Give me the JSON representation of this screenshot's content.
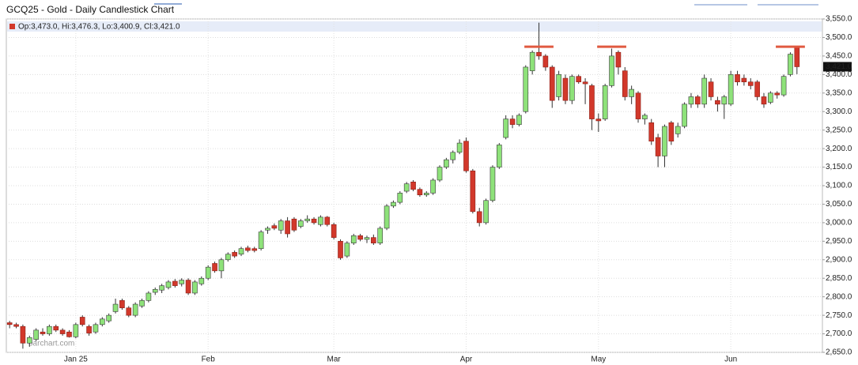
{
  "chart_data": {
    "type": "candlestick",
    "title": "GCQ25 - Gold - Daily Candlestick Chart",
    "legend_text": "Op:3,473.0, Hi:3,476.3, Lo:3,400.9, Cl:3,421.0",
    "watermark": "barchart.com",
    "up_color": "#8ee27a",
    "down_color": "#d2382b",
    "highlight_color": "#e05a40",
    "grid": true,
    "ylim": [
      2650,
      3550
    ],
    "yticks": [
      {
        "value": 2650,
        "label": "2,650.0"
      },
      {
        "value": 2700,
        "label": "2,700.0"
      },
      {
        "value": 2750,
        "label": "2,750.0"
      },
      {
        "value": 2800,
        "label": "2,800.0"
      },
      {
        "value": 2850,
        "label": "2,850.0"
      },
      {
        "value": 2900,
        "label": "2,900.0"
      },
      {
        "value": 2950,
        "label": "2,950.0"
      },
      {
        "value": 3000,
        "label": "3,000.0"
      },
      {
        "value": 3050,
        "label": "3,050.0"
      },
      {
        "value": 3100,
        "label": "3,100.0"
      },
      {
        "value": 3150,
        "label": "3,150.0"
      },
      {
        "value": 3200,
        "label": "3,200.0"
      },
      {
        "value": 3250,
        "label": "3,250.0"
      },
      {
        "value": 3300,
        "label": "3,300.0"
      },
      {
        "value": 3350,
        "label": "3,350.0"
      },
      {
        "value": 3400,
        "label": "3,400.0"
      },
      {
        "value": 3450,
        "label": "3,450.0"
      },
      {
        "value": 3500,
        "label": "3,500.0"
      },
      {
        "value": 3550,
        "label": "3,550.0"
      }
    ],
    "last_close_label": "3,421.0",
    "categories": [
      null,
      null,
      null,
      null,
      null,
      null,
      null,
      null,
      null,
      null,
      "Jan 25",
      null,
      null,
      null,
      null,
      null,
      null,
      null,
      null,
      null,
      null,
      null,
      null,
      null,
      null,
      null,
      null,
      null,
      null,
      null,
      "Feb",
      null,
      null,
      null,
      null,
      null,
      null,
      null,
      null,
      null,
      null,
      null,
      null,
      null,
      null,
      null,
      null,
      null,
      null,
      "Mar",
      null,
      null,
      null,
      null,
      null,
      null,
      null,
      null,
      null,
      null,
      null,
      null,
      null,
      null,
      null,
      null,
      null,
      null,
      null,
      "Apr",
      null,
      null,
      null,
      null,
      null,
      null,
      null,
      null,
      null,
      null,
      null,
      null,
      null,
      null,
      null,
      null,
      null,
      null,
      null,
      "May",
      null,
      null,
      null,
      null,
      null,
      null,
      null,
      null,
      null,
      null,
      null,
      null,
      null,
      null,
      null,
      null,
      null,
      null,
      null,
      "Jun",
      null,
      null,
      null,
      null,
      null,
      null,
      null,
      null,
      null,
      null
    ],
    "open": [
      2730,
      2725,
      2720,
      2675,
      2685,
      2705,
      2700,
      2720,
      2710,
      2705,
      2692,
      2745,
      2720,
      2705,
      2725,
      2735,
      2760,
      2790,
      2770,
      2750,
      2775,
      2790,
      2812,
      2818,
      2825,
      2842,
      2835,
      2845,
      2810,
      2835,
      2850,
      2890,
      2870,
      2900,
      2920,
      2915,
      2932,
      2930,
      2930,
      2980,
      2992,
      2980,
      3005,
      3010,
      2990,
      3005,
      3010,
      2995,
      3015,
      2995,
      2950,
      2910,
      2945,
      2965,
      2955,
      2960,
      2945,
      2985,
      3045,
      3055,
      3085,
      3110,
      3090,
      3075,
      3080,
      3115,
      3150,
      3170,
      3190,
      3220,
      3140,
      3030,
      3000,
      3060,
      3150,
      3230,
      3280,
      3265,
      3300,
      3410,
      3460,
      3450,
      3420,
      3340,
      3390,
      3330,
      3395,
      3380,
      3370,
      3280,
      3280,
      3370,
      3460,
      3410,
      3340,
      3350,
      3280,
      3270,
      3230,
      3180,
      3270,
      3240,
      3260,
      3320,
      3340,
      3320,
      3380,
      3330,
      3320,
      3320,
      3400,
      3390,
      3380,
      3380,
      3340,
      3325,
      3350,
      3345,
      3400,
      3473
    ],
    "high": [
      2735,
      2730,
      2725,
      2695,
      2715,
      2715,
      2725,
      2725,
      2715,
      2710,
      2730,
      2750,
      2725,
      2730,
      2745,
      2755,
      2795,
      2795,
      2775,
      2785,
      2795,
      2815,
      2825,
      2835,
      2845,
      2848,
      2850,
      2850,
      2845,
      2855,
      2885,
      2895,
      2905,
      2920,
      2925,
      2935,
      2938,
      2935,
      2980,
      2990,
      2998,
      3010,
      3015,
      3015,
      3010,
      3020,
      3015,
      3020,
      3018,
      3000,
      2955,
      2950,
      2970,
      2970,
      2965,
      2968,
      2990,
      3050,
      3060,
      3085,
      3110,
      3115,
      3095,
      3085,
      3120,
      3155,
      3175,
      3195,
      3225,
      3230,
      3145,
      3040,
      3065,
      3155,
      3215,
      3290,
      3290,
      3295,
      3425,
      3465,
      3540,
      3455,
      3425,
      3410,
      3400,
      3400,
      3400,
      3390,
      3375,
      3295,
      3375,
      3470,
      3465,
      3420,
      3370,
      3355,
      3295,
      3280,
      3240,
      3265,
      3275,
      3270,
      3325,
      3350,
      3345,
      3400,
      3390,
      3340,
      3345,
      3410,
      3410,
      3400,
      3390,
      3385,
      3350,
      3355,
      3355,
      3400,
      3460,
      3476.3
    ],
    "low": [
      2715,
      2715,
      2660,
      2665,
      2680,
      2695,
      2695,
      2705,
      2695,
      2690,
      2688,
      2720,
      2695,
      2700,
      2720,
      2730,
      2755,
      2765,
      2745,
      2745,
      2770,
      2785,
      2805,
      2810,
      2820,
      2825,
      2828,
      2805,
      2805,
      2830,
      2845,
      2865,
      2850,
      2895,
      2905,
      2910,
      2920,
      2920,
      2925,
      2970,
      2980,
      2970,
      2960,
      2975,
      2985,
      3000,
      2995,
      2990,
      2990,
      2955,
      2900,
      2905,
      2940,
      2950,
      2945,
      2940,
      2940,
      2980,
      3040,
      3050,
      3080,
      3085,
      3070,
      3070,
      3075,
      3110,
      3145,
      3160,
      3185,
      3135,
      3025,
      2990,
      2995,
      3055,
      3145,
      3225,
      3255,
      3260,
      3295,
      3400,
      3440,
      3410,
      3310,
      3330,
      3320,
      3320,
      3375,
      3320,
      3250,
      3245,
      3275,
      3365,
      3400,
      3330,
      3320,
      3270,
      3265,
      3210,
      3150,
      3150,
      3210,
      3230,
      3255,
      3310,
      3310,
      3310,
      3330,
      3300,
      3280,
      3315,
      3370,
      3370,
      3360,
      3330,
      3310,
      3320,
      3335,
      3340,
      3395,
      3400.9
    ],
    "close": [
      2725,
      2720,
      2675,
      2690,
      2710,
      2700,
      2720,
      2710,
      2700,
      2692,
      2725,
      2725,
      2702,
      2725,
      2740,
      2750,
      2780,
      2770,
      2750,
      2780,
      2790,
      2810,
      2820,
      2830,
      2840,
      2830,
      2845,
      2810,
      2840,
      2850,
      2880,
      2870,
      2900,
      2915,
      2910,
      2930,
      2925,
      2925,
      2975,
      2985,
      2985,
      3005,
      2970,
      2980,
      3005,
      3010,
      3000,
      3015,
      2995,
      2960,
      2905,
      2945,
      2965,
      2955,
      2960,
      2945,
      2985,
      3045,
      3055,
      3080,
      3105,
      3090,
      3075,
      3080,
      3115,
      3150,
      3170,
      3190,
      3215,
      3140,
      3030,
      3000,
      3060,
      3150,
      3210,
      3280,
      3265,
      3290,
      3420,
      3460,
      3450,
      3420,
      3330,
      3400,
      3330,
      3395,
      3380,
      3375,
      3280,
      3275,
      3370,
      3450,
      3420,
      3340,
      3360,
      3280,
      3290,
      3220,
      3180,
      3260,
      3220,
      3260,
      3320,
      3340,
      3320,
      3390,
      3340,
      3320,
      3340,
      3400,
      3380,
      3380,
      3370,
      3340,
      3320,
      3350,
      3345,
      3395,
      3455,
      3421
    ],
    "highlights": [
      {
        "index": 80,
        "value": 3475
      },
      {
        "index": 91,
        "value": 3475
      },
      {
        "index": 118,
        "value": 3475
      }
    ]
  }
}
